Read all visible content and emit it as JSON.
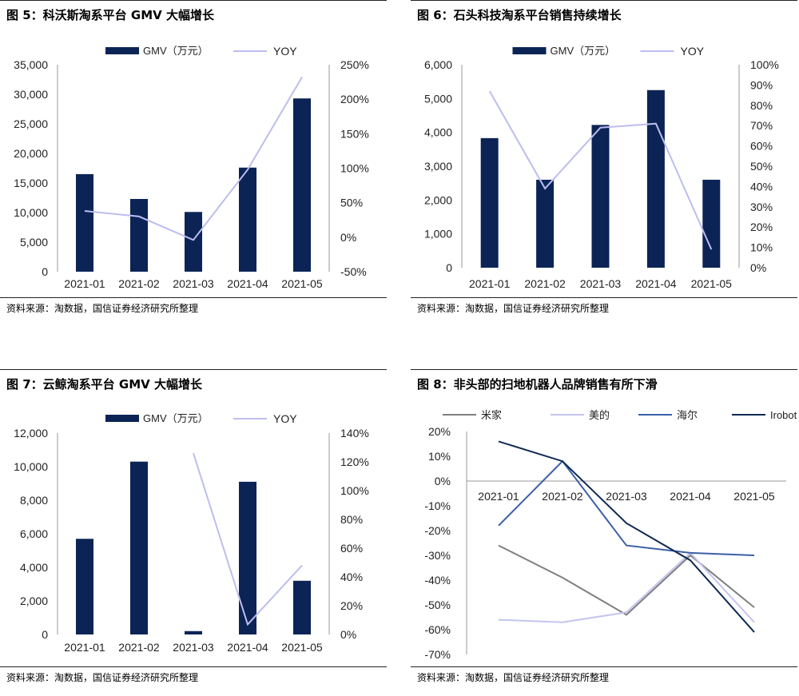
{
  "source_text": "资料来源：淘数据，国信证券经济研究所整理",
  "panels": [
    {
      "title": "图 5：科沃斯淘系平台 GMV 大幅增长"
    },
    {
      "title": "图 6：石头科技淘系平台销售持续增长"
    },
    {
      "title": "图 7：云鲸淘系平台 GMV 大幅增长"
    },
    {
      "title": "图 8：非头部的扫地机器人品牌销售有所下滑"
    }
  ],
  "colors": {
    "bar": "#0b2455",
    "yoy": "#bdbdef",
    "mijia": "#7f7f7f",
    "meide": "#c4c4f0",
    "haier": "#3c5fa6",
    "irobot": "#0e2a52"
  },
  "chart_data": [
    {
      "type": "bar",
      "categories": [
        "2021-01",
        "2021-02",
        "2021-03",
        "2021-04",
        "2021-05"
      ],
      "series": [
        {
          "name": "GMV（万元）",
          "type": "bar",
          "axis": "left",
          "values": [
            16500,
            12300,
            10100,
            17600,
            29300
          ]
        },
        {
          "name": "YOY",
          "type": "line",
          "axis": "right",
          "values": [
            0.38,
            0.3,
            -0.04,
            0.98,
            2.32
          ]
        }
      ],
      "left_axis": {
        "min": 0,
        "max": 35000,
        "step": 5000,
        "ticks": [
          "0",
          "5,000",
          "10,000",
          "15,000",
          "20,000",
          "25,000",
          "30,000",
          "35,000"
        ]
      },
      "right_axis": {
        "min": -0.5,
        "max": 2.5,
        "step": 0.5,
        "ticks": [
          "-50%",
          "0%",
          "50%",
          "100%",
          "150%",
          "200%",
          "250%"
        ]
      },
      "legend": "top"
    },
    {
      "type": "bar",
      "categories": [
        "2021-01",
        "2021-02",
        "2021-03",
        "2021-04",
        "2021-05"
      ],
      "series": [
        {
          "name": "GMV（万元）",
          "type": "bar",
          "axis": "left",
          "values": [
            3830,
            2600,
            4220,
            5250,
            2600
          ]
        },
        {
          "name": "YOY",
          "type": "line",
          "axis": "right",
          "values": [
            0.87,
            0.39,
            0.69,
            0.71,
            0.09
          ]
        }
      ],
      "left_axis": {
        "min": 0,
        "max": 6000,
        "step": 1000,
        "ticks": [
          "0",
          "1,000",
          "2,000",
          "3,000",
          "4,000",
          "5,000",
          "6,000"
        ]
      },
      "right_axis": {
        "min": 0,
        "max": 1.0,
        "step": 0.1,
        "ticks": [
          "0%",
          "10%",
          "20%",
          "30%",
          "40%",
          "50%",
          "60%",
          "70%",
          "80%",
          "90%",
          "100%"
        ]
      },
      "legend": "top"
    },
    {
      "type": "bar",
      "categories": [
        "2021-01",
        "2021-02",
        "2021-03",
        "2021-04",
        "2021-05"
      ],
      "series": [
        {
          "name": "GMV（万元）",
          "type": "bar",
          "axis": "left",
          "values": [
            5700,
            10300,
            200,
            9100,
            3200
          ]
        },
        {
          "name": "YOY",
          "type": "line",
          "axis": "right",
          "values": [
            null,
            null,
            1.26,
            0.07,
            0.48
          ]
        }
      ],
      "left_axis": {
        "min": 0,
        "max": 12000,
        "step": 2000,
        "ticks": [
          "0",
          "2,000",
          "4,000",
          "6,000",
          "8,000",
          "10,000",
          "12,000"
        ]
      },
      "right_axis": {
        "min": 0,
        "max": 1.4,
        "step": 0.2,
        "ticks": [
          "0%",
          "20%",
          "40%",
          "60%",
          "80%",
          "100%",
          "120%",
          "140%"
        ]
      },
      "legend": "top"
    },
    {
      "type": "line",
      "categories": [
        "2021-01",
        "2021-02",
        "2021-03",
        "2021-04",
        "2021-05"
      ],
      "series": [
        {
          "name": "米家",
          "values": [
            -0.26,
            -0.39,
            -0.54,
            -0.3,
            -0.51
          ]
        },
        {
          "name": "美的",
          "values": [
            -0.56,
            -0.57,
            -0.53,
            -0.29,
            -0.57
          ]
        },
        {
          "name": "海尔",
          "values": [
            -0.18,
            0.08,
            -0.26,
            -0.29,
            -0.3
          ]
        },
        {
          "name": "Irobot",
          "values": [
            0.16,
            0.08,
            -0.17,
            -0.32,
            -0.61
          ]
        }
      ],
      "y_axis": {
        "min": -0.7,
        "max": 0.2,
        "step": 0.1,
        "ticks": [
          "-70%",
          "-60%",
          "-50%",
          "-40%",
          "-30%",
          "-20%",
          "-10%",
          "0%",
          "10%",
          "20%"
        ]
      },
      "legend": "top"
    }
  ]
}
